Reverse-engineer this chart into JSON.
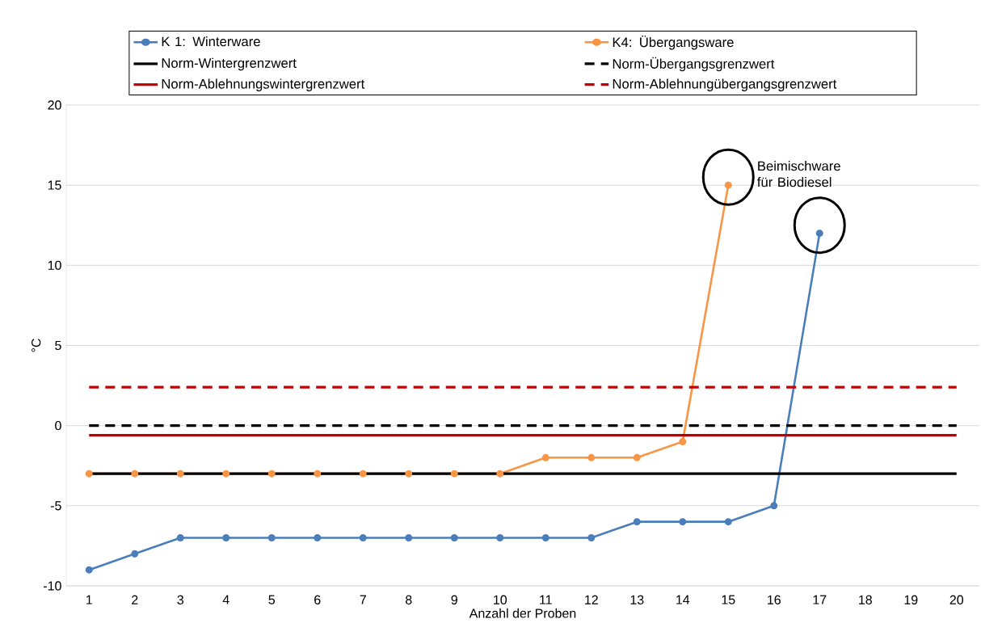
{
  "chart_data": {
    "type": "line",
    "xlabel": "Anzahl der Proben",
    "ylabel": "°C",
    "categories": [
      "1",
      "2",
      "3",
      "4",
      "5",
      "6",
      "7",
      "8",
      "9",
      "10",
      "11",
      "12",
      "13",
      "14",
      "15",
      "16",
      "17",
      "18",
      "19",
      "20"
    ],
    "series": [
      {
        "name": "K 1: Winterware",
        "color": "#4a7ebb",
        "marker": "circle",
        "line_style": "solid",
        "values": [
          -9,
          -8,
          -7,
          -7,
          -7,
          -7,
          -7,
          -7,
          -7,
          -7,
          -7,
          -7,
          -6,
          -6,
          -6,
          -5,
          12,
          null,
          null,
          null
        ]
      },
      {
        "name": "K4: Übergangsware",
        "color": "#f79646",
        "marker": "circle",
        "line_style": "solid",
        "values": [
          -3,
          -3,
          -3,
          -3,
          -3,
          -3,
          -3,
          -3,
          -3,
          -3,
          -2,
          -2,
          -2,
          -1,
          15,
          null,
          null,
          null,
          null,
          null
        ]
      },
      {
        "name": "Norm-Wintergrenzwert",
        "color": "#000000",
        "marker": "none",
        "line_style": "solid",
        "values": [
          -3,
          -3,
          -3,
          -3,
          -3,
          -3,
          -3,
          -3,
          -3,
          -3,
          -3,
          -3,
          -3,
          -3,
          -3,
          -3,
          -3,
          -3,
          -3,
          -3
        ]
      },
      {
        "name": "Norm-Übergangsgrenzwert",
        "color": "#000000",
        "marker": "none",
        "line_style": "dashed",
        "values": [
          0,
          0,
          0,
          0,
          0,
          0,
          0,
          0,
          0,
          0,
          0,
          0,
          0,
          0,
          0,
          0,
          0,
          0,
          0,
          0
        ]
      },
      {
        "name": "Norm-Ablehnungswintergrenzwert",
        "color": "#c00000",
        "marker": "none",
        "line_style": "solid",
        "values": [
          -0.6,
          -0.6,
          -0.6,
          -0.6,
          -0.6,
          -0.6,
          -0.6,
          -0.6,
          -0.6,
          -0.6,
          -0.6,
          -0.6,
          -0.6,
          -0.6,
          -0.6,
          -0.6,
          -0.6,
          -0.6,
          -0.6,
          -0.6
        ]
      },
      {
        "name": "Norm-Ablehnungübergangsgrenzwert",
        "color": "#c00000",
        "marker": "none",
        "line_style": "dashed",
        "values": [
          2.4,
          2.4,
          2.4,
          2.4,
          2.4,
          2.4,
          2.4,
          2.4,
          2.4,
          2.4,
          2.4,
          2.4,
          2.4,
          2.4,
          2.4,
          2.4,
          2.4,
          2.4,
          2.4,
          2.4
        ]
      }
    ],
    "ylim": [
      -10,
      20
    ],
    "yticks": [
      -10,
      -5,
      0,
      5,
      10,
      15,
      20
    ],
    "grid": "y",
    "legend": "top",
    "annotations": [
      {
        "text": "Beimischware für Biodiesel",
        "x": "15",
        "y": 15
      }
    ]
  }
}
